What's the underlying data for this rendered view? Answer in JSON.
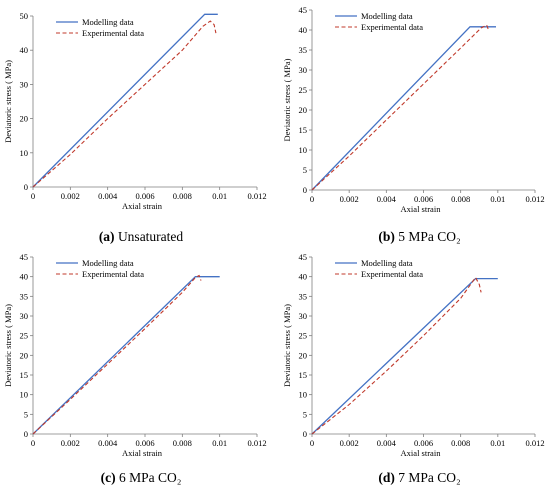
{
  "chart_data": [
    {
      "type": "line",
      "caption": {
        "label": "(a)",
        "text": "Unsaturated"
      },
      "xlabel": "Axial strain",
      "ylabel": "Deviatoric stress ( MPa)",
      "xlim": [
        0,
        0.012
      ],
      "ylim": [
        0,
        50
      ],
      "xticks": [
        "0",
        "0.002",
        "0.004",
        "0.006",
        "0.008",
        "0.01",
        "0.012"
      ],
      "yticks": [
        "0",
        "10",
        "20",
        "30",
        "40",
        "50"
      ],
      "legend_position": "top-left",
      "series": [
        {
          "name": "Modelling data",
          "color": "#4472C4",
          "style": "solid",
          "x": [
            0,
            0.0092,
            0.0099
          ],
          "y": [
            0,
            50.5,
            50.5
          ]
        },
        {
          "name": "Experimental data",
          "color": "#C0392B",
          "style": "dashed",
          "x": [
            0,
            0.002,
            0.004,
            0.006,
            0.008,
            0.0091,
            0.0095,
            0.0097,
            0.0098
          ],
          "y": [
            0,
            9.5,
            20,
            30,
            40,
            47,
            48.5,
            47.5,
            45
          ]
        }
      ]
    },
    {
      "type": "line",
      "caption": {
        "label": "(b)",
        "text": "5 MPa CO₂"
      },
      "xlabel": "Axial strain",
      "ylabel": "Deviatoric stress ( MPa)",
      "xlim": [
        0,
        0.012
      ],
      "ylim": [
        0,
        45
      ],
      "xticks": [
        "0",
        "0.002",
        "0.004",
        "0.006",
        "0.008",
        "0.01",
        "0.012"
      ],
      "yticks": [
        "0",
        "5",
        "10",
        "15",
        "20",
        "25",
        "30",
        "35",
        "40",
        "45"
      ],
      "legend_position": "top-left",
      "series": [
        {
          "name": "Modelling data",
          "color": "#4472C4",
          "style": "solid",
          "x": [
            0,
            0.0085,
            0.0099
          ],
          "y": [
            0,
            40.8,
            40.8
          ]
        },
        {
          "name": "Experimental data",
          "color": "#C0392B",
          "style": "dashed",
          "x": [
            0,
            0.002,
            0.004,
            0.006,
            0.008,
            0.0091,
            0.0094,
            0.0095
          ],
          "y": [
            0,
            8.5,
            17.5,
            26.5,
            35.5,
            40.5,
            41.2,
            40
          ]
        }
      ]
    },
    {
      "type": "line",
      "caption": {
        "label": "(c)",
        "text": "6 MPa CO₂"
      },
      "xlabel": "Axial strain",
      "ylabel": "Deviatoric stress ( MPa)",
      "xlim": [
        0,
        0.012
      ],
      "ylim": [
        0,
        45
      ],
      "xticks": [
        "0",
        "0.002",
        "0.004",
        "0.006",
        "0.008",
        "0.01",
        "0.012"
      ],
      "yticks": [
        "0",
        "5",
        "10",
        "15",
        "20",
        "25",
        "30",
        "35",
        "40",
        "45"
      ],
      "legend_position": "top-left",
      "series": [
        {
          "name": "Modelling data",
          "color": "#4472C4",
          "style": "solid",
          "x": [
            0,
            0.0087,
            0.01
          ],
          "y": [
            0,
            40,
            40
          ]
        },
        {
          "name": "Experimental data",
          "color": "#C0392B",
          "style": "dashed",
          "x": [
            0,
            0.002,
            0.004,
            0.006,
            0.008,
            0.0087,
            0.0089,
            0.009
          ],
          "y": [
            0,
            8.8,
            17.8,
            26.8,
            36,
            39.8,
            40.3,
            39
          ]
        }
      ]
    },
    {
      "type": "line",
      "caption": {
        "label": "(d)",
        "text": "7 MPa CO₂"
      },
      "xlabel": "Axial strain",
      "ylabel": "Deviatoric stress ( MPa)",
      "xlim": [
        0,
        0.012
      ],
      "ylim": [
        0,
        45
      ],
      "xticks": [
        "0",
        "0.002",
        "0.004",
        "0.006",
        "0.008",
        "0.01",
        "0.012"
      ],
      "yticks": [
        "0",
        "5",
        "10",
        "15",
        "20",
        "25",
        "30",
        "35",
        "40",
        "45"
      ],
      "legend_position": "top-left",
      "series": [
        {
          "name": "Modelling data",
          "color": "#4472C4",
          "style": "solid",
          "x": [
            0,
            0.0088,
            0.01
          ],
          "y": [
            0,
            39.5,
            39.5
          ]
        },
        {
          "name": "Experimental data",
          "color": "#C0392B",
          "style": "dashed",
          "x": [
            0,
            0.002,
            0.004,
            0.006,
            0.008,
            0.0088,
            0.009,
            0.0091
          ],
          "y": [
            0,
            7.5,
            16,
            25,
            34.5,
            39.8,
            38,
            36
          ]
        }
      ]
    }
  ]
}
